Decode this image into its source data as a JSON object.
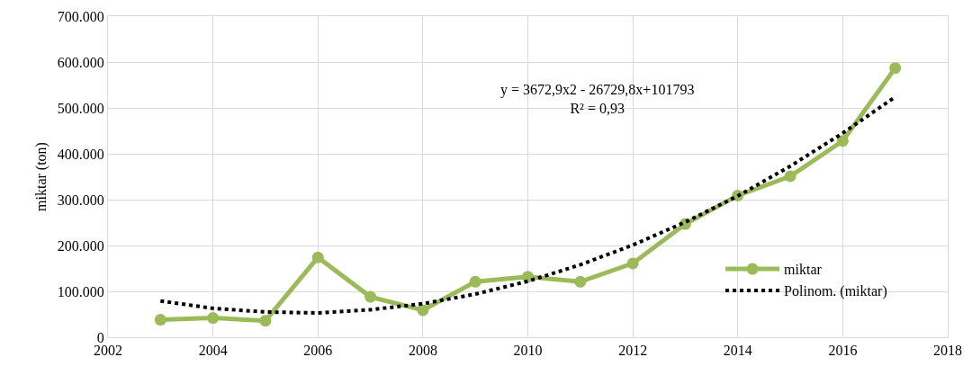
{
  "chart_data": {
    "type": "line",
    "ylabel": "miktar (ton)",
    "x": [
      2003,
      2004,
      2005,
      2006,
      2007,
      2008,
      2009,
      2010,
      2011,
      2012,
      2013,
      2014,
      2015,
      2016,
      2017
    ],
    "series": [
      {
        "name": "miktar",
        "color": "#9bbb59",
        "marker": "circle",
        "line_style": "solid",
        "values": [
          38000,
          42000,
          36000,
          174000,
          88000,
          59000,
          121000,
          132000,
          121000,
          161000,
          247000,
          309000,
          351000,
          428000,
          587000
        ]
      },
      {
        "name": "Polinom. (miktar)",
        "color": "#000000",
        "marker": "none",
        "line_style": "dotted",
        "values": [
          79000,
          63000,
          55000,
          53000,
          60000,
          73000,
          94000,
          122000,
          158000,
          201000,
          251000,
          308000,
          373000,
          445000,
          524000
        ]
      }
    ],
    "xlim": [
      2002,
      2018
    ],
    "xticks": [
      2002,
      2004,
      2006,
      2008,
      2010,
      2012,
      2014,
      2016,
      2018
    ],
    "ylim": [
      0,
      700000
    ],
    "yticks": [
      {
        "value": 0,
        "label": "0"
      },
      {
        "value": 100000,
        "label": "100.000"
      },
      {
        "value": 200000,
        "label": "200.000"
      },
      {
        "value": 300000,
        "label": "300.000"
      },
      {
        "value": 400000,
        "label": "400.000"
      },
      {
        "value": 500000,
        "label": "500.000"
      },
      {
        "value": 600000,
        "label": "600.000"
      },
      {
        "value": 700000,
        "label": "700.000"
      }
    ],
    "grid": true,
    "legend": "right",
    "annotations": [
      "y = 3672,9x2 - 26729,8x+101793\nR² = 0,93"
    ]
  }
}
